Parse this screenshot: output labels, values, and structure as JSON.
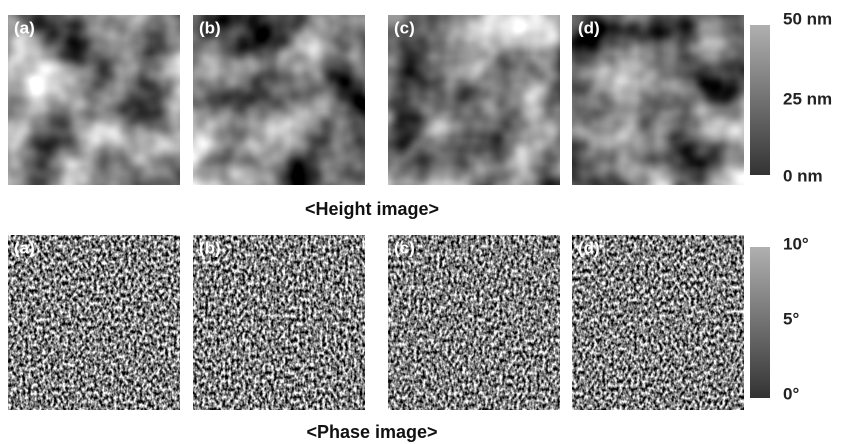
{
  "height": {
    "panels": [
      "(a)",
      "(b)",
      "(c)",
      "(d)"
    ],
    "caption": "<Height image>",
    "scale": [
      "50 nm",
      "25 nm",
      "0 nm"
    ]
  },
  "phase": {
    "panels": [
      "(a)",
      "(b)",
      "(c)",
      "(d)"
    ],
    "caption": "<Phase image>",
    "scale": [
      "10°",
      "5°",
      "0°"
    ]
  }
}
